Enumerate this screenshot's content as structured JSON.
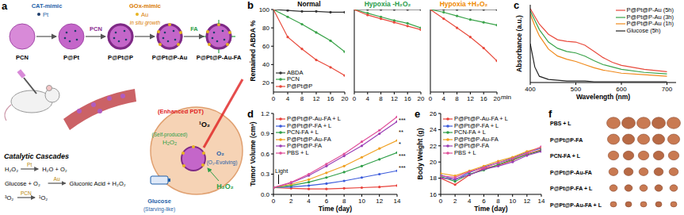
{
  "panel_labels": [
    "a",
    "b",
    "c",
    "d",
    "e",
    "f"
  ],
  "diagram": {
    "synthesis": {
      "nodes": [
        "PCN",
        "P@Pt",
        "P@Pt@P",
        "P@Pt@P-Au",
        "P@Pt@P-Au-FA"
      ],
      "steps": [
        {
          "label": "CAT-mimic",
          "agent": "Pt"
        },
        {
          "label": "PCN"
        },
        {
          "label": "GOx-mimic",
          "agent": "Au",
          "note": "in situ growth"
        },
        {
          "label": "FA"
        }
      ]
    },
    "cascade_title": "Catalytic Cascades",
    "reactions": [
      {
        "left": "H₂O₂",
        "catalyst": "Pt",
        "right": "H₂O + O₂"
      },
      {
        "left": "Glucose + O₂",
        "catalyst": "Au",
        "right": "Gluconic Acid + H₂O₂"
      },
      {
        "left": "³O₂",
        "catalyst": "PCN",
        "right": "¹O₂"
      }
    ],
    "tumor_labels": {
      "pdt": "(Enhanced PDT)",
      "singlet": "¹O₂",
      "self": "(Self-produced)",
      "h2o2_top": "H₂O₂",
      "o2": "O₂",
      "evolving": "(O₂-Evolving)",
      "h2o2_bottom": "H₂O₂",
      "glucose": "Glucose",
      "starving": "(Starving-like)"
    }
  },
  "chart_data": [
    {
      "type": "line",
      "title": "Normal",
      "ylabel": "Remained ABDA %",
      "x": [
        0,
        4,
        8,
        12,
        16,
        20
      ],
      "xlim": [
        0,
        20
      ],
      "xticks": [
        0,
        4,
        8,
        12,
        16,
        20
      ],
      "ylim": [
        10,
        100
      ],
      "yticks": [
        20,
        40,
        60,
        80,
        100
      ],
      "marker": "circle",
      "legend": "lower left",
      "series": [
        {
          "name": "ABDA",
          "color": "#333333",
          "values": [
            100,
            99,
            98,
            98,
            97,
            97
          ]
        },
        {
          "name": "PCN",
          "color": "#3aa34a",
          "values": [
            100,
            92,
            84,
            75,
            66,
            54
          ]
        },
        {
          "name": "P@Pt@P",
          "color": "#e84a3c",
          "values": [
            100,
            70,
            57,
            45,
            37,
            28
          ]
        }
      ]
    },
    {
      "type": "line",
      "title": "Hypoxia -H₂O₂",
      "x": [
        0,
        4,
        8,
        12,
        16,
        20
      ],
      "xlim": [
        0,
        20
      ],
      "xticks": [
        0,
        4,
        8,
        12,
        16,
        20
      ],
      "ylim": [
        10,
        100
      ],
      "yticks": [
        20,
        40,
        60,
        80,
        100
      ],
      "marker": "circle",
      "tick_labels": "x",
      "series": [
        {
          "name": "ABDA",
          "color": "#333333",
          "values": [
            100,
            100,
            100,
            100,
            100,
            100
          ]
        },
        {
          "name": "PCN",
          "color": "#3aa34a",
          "values": [
            100,
            96,
            92,
            88,
            85,
            80
          ]
        },
        {
          "name": "P@Pt@P",
          "color": "#e84a3c",
          "values": [
            100,
            94,
            90,
            86,
            82,
            78
          ]
        }
      ]
    },
    {
      "type": "line",
      "title": "Hypoxia +H₂O₂",
      "xlabel": "min",
      "x": [
        0,
        4,
        8,
        12,
        16,
        20
      ],
      "xlim": [
        0,
        20
      ],
      "xticks": [
        0,
        4,
        8,
        12,
        16,
        20
      ],
      "ylim": [
        10,
        100
      ],
      "yticks": [
        20,
        40,
        60,
        80,
        100
      ],
      "marker": "circle",
      "tick_labels": "x",
      "series": [
        {
          "name": "ABDA",
          "color": "#333333",
          "values": [
            100,
            100,
            100,
            100,
            100,
            100
          ]
        },
        {
          "name": "PCN",
          "color": "#3aa34a",
          "values": [
            100,
            97,
            93,
            89,
            86,
            83
          ]
        },
        {
          "name": "P@Pt@P",
          "color": "#e84a3c",
          "values": [
            100,
            90,
            80,
            70,
            58,
            44
          ]
        }
      ]
    },
    {
      "type": "line",
      "xlabel": "Wavelength (nm)",
      "ylabel": "Absorbance (a.u.)",
      "x": [
        400,
        410,
        420,
        440,
        460,
        480,
        500,
        520,
        540,
        560,
        580,
        600,
        650,
        700
      ],
      "xlim": [
        400,
        720
      ],
      "xticks": [
        400,
        500,
        600,
        700
      ],
      "ylim": [
        0,
        1
      ],
      "tick_labels": "x",
      "legend": "upper right",
      "series": [
        {
          "name": "P@Pt@P-Au (5h)",
          "color": "#e84a3c",
          "values": [
            0.95,
            0.85,
            0.75,
            0.62,
            0.55,
            0.53,
            0.52,
            0.48,
            0.4,
            0.32,
            0.26,
            0.22,
            0.17,
            0.14
          ]
        },
        {
          "name": "P@Pt@P-Au (3h)",
          "color": "#3aa34a",
          "values": [
            0.92,
            0.8,
            0.68,
            0.52,
            0.44,
            0.4,
            0.38,
            0.34,
            0.28,
            0.23,
            0.2,
            0.17,
            0.13,
            0.11
          ]
        },
        {
          "name": "P@Pt@P-Au (1h)",
          "color": "#f08a1c",
          "values": [
            0.88,
            0.73,
            0.6,
            0.43,
            0.34,
            0.3,
            0.27,
            0.23,
            0.19,
            0.16,
            0.14,
            0.12,
            0.1,
            0.08
          ]
        },
        {
          "name": "Glucose (5h)",
          "color": "#222222",
          "values": [
            0.5,
            0.2,
            0.08,
            0.04,
            0.03,
            0.02,
            0.02,
            0.02,
            0.01,
            0.01,
            0.01,
            0.01,
            0.01,
            0.01
          ]
        }
      ]
    },
    {
      "type": "line",
      "xlabel": "Time (day)",
      "ylabel": "Tumor Volume (cm³)",
      "x": [
        0,
        2,
        4,
        6,
        8,
        10,
        12,
        14
      ],
      "xlim": [
        0,
        14
      ],
      "xticks": [
        0,
        2,
        4,
        6,
        8,
        10,
        12,
        14
      ],
      "ylim": [
        0,
        1.2
      ],
      "yticks": [
        {
          "value": 0,
          "label": "0.0"
        },
        0.3,
        0.6,
        0.9,
        1.2
      ],
      "marker": "circle",
      "legend": "upper left",
      "annotations": {
        "light": "Light",
        "significance": [
          "***",
          "**",
          "*",
          "***",
          "***"
        ]
      },
      "series": [
        {
          "name": "P@Pt@P-Au-FA + L",
          "color": "#e8413a",
          "values": [
            0.1,
            0.09,
            0.08,
            0.08,
            0.09,
            0.1,
            0.11,
            0.13
          ]
        },
        {
          "name": "P@Pt@P-FA + L",
          "color": "#3b5bdb",
          "values": [
            0.1,
            0.11,
            0.13,
            0.16,
            0.2,
            0.25,
            0.3,
            0.35
          ]
        },
        {
          "name": "PCN-FA + L",
          "color": "#2e9e47",
          "values": [
            0.1,
            0.13,
            0.18,
            0.25,
            0.33,
            0.42,
            0.52,
            0.62
          ]
        },
        {
          "name": "P@Pt@P-Au-FA",
          "color": "#f0a020",
          "values": [
            0.1,
            0.15,
            0.22,
            0.32,
            0.42,
            0.55,
            0.68,
            0.8
          ]
        },
        {
          "name": "P@Pt@P-FA",
          "color": "#9b3fb5",
          "values": [
            0.1,
            0.17,
            0.28,
            0.42,
            0.57,
            0.72,
            0.9,
            1.08
          ]
        },
        {
          "name": "PBS + L",
          "color": "#e0509a",
          "values": [
            0.1,
            0.18,
            0.3,
            0.45,
            0.6,
            0.78,
            0.95,
            1.15
          ]
        }
      ]
    },
    {
      "type": "line",
      "xlabel": "Time (day)",
      "ylabel": "Body Weight (g)",
      "x": [
        0,
        2,
        4,
        6,
        8,
        10,
        12,
        14
      ],
      "xlim": [
        0,
        14
      ],
      "xticks": [
        0,
        2,
        4,
        6,
        8,
        10,
        12,
        14
      ],
      "ylim": [
        16,
        26
      ],
      "yticks": [
        16,
        18,
        20,
        22,
        24,
        26
      ],
      "marker": "circle",
      "legend": "upper left",
      "series": [
        {
          "name": "P@Pt@P-Au-FA + L",
          "color": "#e8413a",
          "values": [
            18.0,
            17.2,
            18.4,
            19.2,
            19.6,
            20.2,
            21.0,
            21.5
          ]
        },
        {
          "name": "P@Pt@P-FA + L",
          "color": "#3b5bdb",
          "values": [
            18.4,
            17.8,
            18.7,
            19.4,
            19.9,
            20.5,
            21.2,
            21.7
          ]
        },
        {
          "name": "PCN-FA + L",
          "color": "#2e9e47",
          "values": [
            18.2,
            17.6,
            18.5,
            19.0,
            19.7,
            20.3,
            20.9,
            21.4
          ]
        },
        {
          "name": "P@Pt@P-Au-FA",
          "color": "#f0a020",
          "values": [
            18.6,
            18.3,
            18.9,
            19.5,
            20.1,
            20.6,
            21.3,
            21.8
          ]
        },
        {
          "name": "P@Pt@P-FA",
          "color": "#9b3fb5",
          "values": [
            18.0,
            17.9,
            18.4,
            19.1,
            19.5,
            20.0,
            20.8,
            21.3
          ]
        },
        {
          "name": "PBS + L",
          "color": "#e0509a",
          "values": [
            18.3,
            18.1,
            18.8,
            19.3,
            19.9,
            20.4,
            21.1,
            21.9
          ]
        }
      ]
    }
  ],
  "photo": {
    "rows": [
      "PBS + L",
      "P@Pt@P-FA",
      "PCN-FA + L",
      "P@Pt@P-Au-FA",
      "P@Pt@P-FA + L",
      "P@Pt@P-Au-FA + L"
    ]
  }
}
